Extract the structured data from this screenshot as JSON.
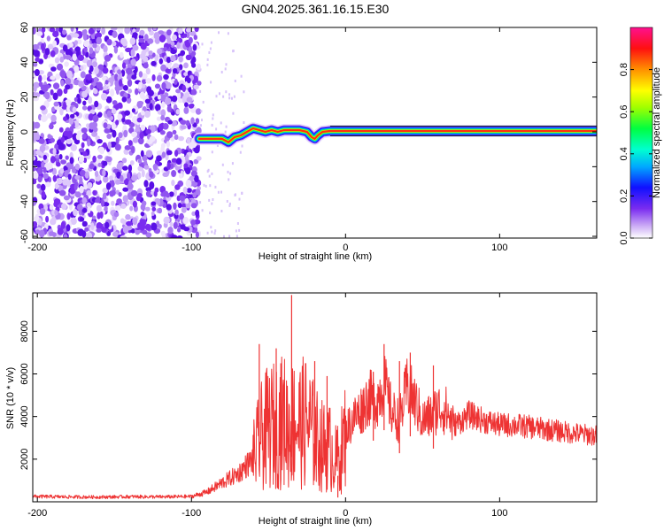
{
  "chart_data": [
    {
      "type": "heatmap",
      "title": "GN04.2025.361.16.15.E30",
      "xlabel": "Height of straight line (km)",
      "ylabel": "Frequency (Hz)",
      "xlim": [
        -203,
        163
      ],
      "ylim": [
        -61,
        60
      ],
      "xticks": [
        "-200",
        "-100",
        "0",
        "100"
      ],
      "yticks": [
        "60",
        "40",
        "20",
        "0",
        "-20",
        "-40",
        "-60"
      ],
      "colorbar": {
        "label": "Normalized spectral amplitude",
        "range": [
          0,
          1
        ],
        "ticks": [
          "0.0",
          "0.2",
          "0.4",
          "0.6",
          "0.8"
        ],
        "colors": [
          "#ffffff",
          "#a06cf0",
          "#5000e0",
          "#0000ff",
          "#00aaff",
          "#00ffd0",
          "#00ff40",
          "#a0ff00",
          "#ffff00",
          "#ff8000",
          "#ff0000",
          "#ff0080"
        ]
      },
      "noise_region": {
        "x_from": -203,
        "x_to": -95,
        "color": "#7a2cf0"
      },
      "ridge": {
        "x": [
          -95,
          -90,
          -85,
          -80,
          -76,
          -72,
          -68,
          -64,
          -60,
          -56,
          -52,
          -48,
          -44,
          -40,
          -35,
          -30,
          -25,
          -22,
          -20,
          -18,
          -15,
          -10,
          -5,
          0,
          20,
          60,
          100,
          163
        ],
        "y": [
          -4,
          -4,
          -4,
          -4,
          -6,
          -3,
          -2,
          0,
          2,
          1,
          0,
          1,
          0,
          1,
          1,
          1,
          0,
          -3,
          -4,
          -2,
          0,
          0.5,
          0.5,
          0.5,
          0.5,
          0.5,
          0.5,
          0.5
        ]
      }
    },
    {
      "type": "line",
      "xlabel": "Height of straight line (km)",
      "ylabel": "SNR (10 * v/v)",
      "xlim": [
        -203,
        163
      ],
      "ylim": [
        0,
        9800
      ],
      "xticks": [
        "-200",
        "-100",
        "0",
        "100"
      ],
      "yticks": [
        "2000",
        "4000",
        "6000",
        "8000"
      ],
      "line_color": "#ee3333",
      "series": [
        {
          "x": [
            -203,
            -180,
            -160,
            -140,
            -120,
            -100,
            -90,
            -80,
            -70,
            -60,
            -55,
            -50,
            -45,
            -40,
            -36,
            -33,
            -30,
            -25,
            -20,
            -15,
            -10,
            -6,
            -3,
            0,
            5,
            10,
            15,
            20,
            25,
            30,
            35,
            40,
            45,
            50,
            55,
            60,
            65,
            70,
            75,
            80,
            90,
            100,
            110,
            120,
            130,
            140,
            150,
            163
          ],
          "y": [
            250,
            230,
            220,
            240,
            230,
            250,
            450,
            900,
            1300,
            2000,
            3000,
            3500,
            3600,
            3800,
            3300,
            3900,
            3600,
            3800,
            3000,
            2600,
            2500,
            1900,
            2300,
            3300,
            3900,
            4300,
            4900,
            4700,
            5600,
            4200,
            3800,
            5400,
            4700,
            3800,
            4000,
            4400,
            4300,
            3600,
            3800,
            4100,
            3800,
            3600,
            3600,
            3500,
            3400,
            3300,
            3200,
            3100
          ]
        }
      ],
      "spikes": [
        {
          "x": -56,
          "y": 7400
        },
        {
          "x": -45,
          "y": 7200
        },
        {
          "x": -42,
          "y": 6500
        },
        {
          "x": -35,
          "y": 9700
        },
        {
          "x": -28,
          "y": 6100
        },
        {
          "x": -20,
          "y": 6600
        },
        {
          "x": -12,
          "y": 5900
        },
        {
          "x": 18,
          "y": 6100
        },
        {
          "x": 25,
          "y": 7400
        },
        {
          "x": 35,
          "y": 6600
        },
        {
          "x": 42,
          "y": 7000
        },
        {
          "x": 57,
          "y": 6400
        },
        {
          "x": -5,
          "y": 200
        }
      ]
    }
  ]
}
